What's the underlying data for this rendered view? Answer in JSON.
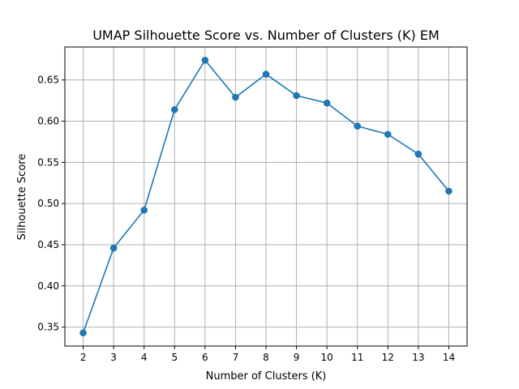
{
  "chart_data": {
    "type": "line",
    "title": "UMAP Silhouette Score vs. Number of Clusters (K) EM",
    "xlabel": "Number of Clusters (K)",
    "ylabel": "Silhouette Score",
    "x": [
      2,
      3,
      4,
      5,
      6,
      7,
      8,
      9,
      10,
      11,
      12,
      13,
      14
    ],
    "series": [
      {
        "values": [
          0.343,
          0.446,
          0.492,
          0.614,
          0.674,
          0.629,
          0.657,
          0.631,
          0.622,
          0.594,
          0.584,
          0.56,
          0.515
        ],
        "color": "#1f77b4",
        "marker": "circle"
      }
    ],
    "xlim": [
      1.4,
      14.6
    ],
    "ylim": [
      0.327,
      0.69
    ],
    "xticks": [
      "2",
      "3",
      "4",
      "5",
      "6",
      "7",
      "8",
      "9",
      "10",
      "11",
      "12",
      "13",
      "14"
    ],
    "yticks": [
      "0.35",
      "0.40",
      "0.45",
      "0.50",
      "0.55",
      "0.60",
      "0.65"
    ],
    "grid": true,
    "legend": "none"
  }
}
